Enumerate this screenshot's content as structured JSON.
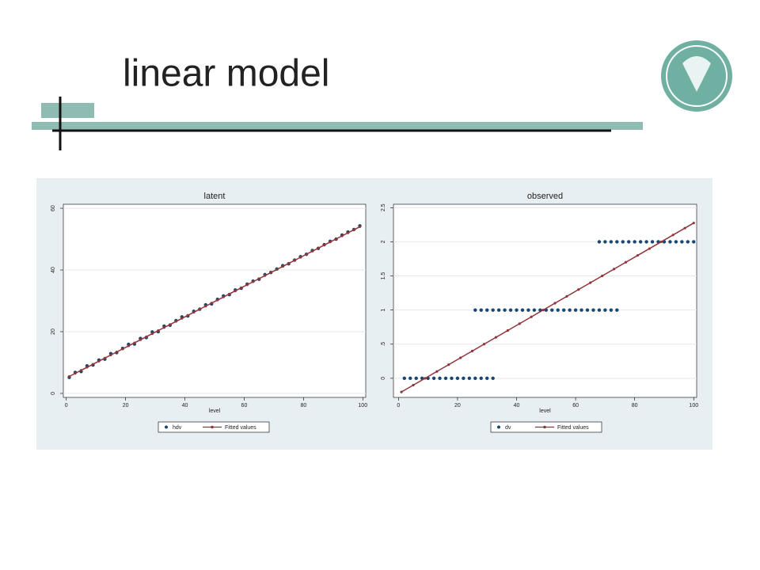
{
  "slide_title": "linear model",
  "chart_data": [
    {
      "type": "scatter",
      "title": "latent",
      "x_label": "level",
      "xlim": [
        -1,
        101
      ],
      "xticks": [
        0,
        20,
        40,
        60,
        80,
        100
      ],
      "ylim": [
        -1.3,
        61.3
      ],
      "yticks": [
        0,
        20,
        40,
        60
      ],
      "grid": true,
      "series": [
        {
          "name": "hdv",
          "color": "#1a476f",
          "kind": "scatter",
          "x": [
            1,
            3,
            5,
            7,
            9,
            11,
            13,
            15,
            17,
            19,
            21,
            23,
            25,
            27,
            29,
            31,
            33,
            35,
            37,
            39,
            41,
            43,
            45,
            47,
            49,
            51,
            53,
            55,
            57,
            59,
            61,
            63,
            65,
            67,
            69,
            71,
            73,
            75,
            77,
            79,
            81,
            83,
            85,
            87,
            89,
            91,
            93,
            95,
            97,
            99
          ],
          "values": [
            5.2,
            6.8,
            7.1,
            8.9,
            9.2,
            10.8,
            11.1,
            12.9,
            13.2,
            14.6,
            15.9,
            16.0,
            17.8,
            18.1,
            19.9,
            20.0,
            21.8,
            22.1,
            23.6,
            24.8,
            25.1,
            26.6,
            27.3,
            28.7,
            29.0,
            30.5,
            31.6,
            32.0,
            33.5,
            34.1,
            35.4,
            36.4,
            37.0,
            38.5,
            39.2,
            40.3,
            41.4,
            42.0,
            43.2,
            44.3,
            45.1,
            46.3,
            47.0,
            48.2,
            49.3,
            50.0,
            51.3,
            52.3,
            53.1,
            54.3
          ]
        },
        {
          "name": "Fitted values",
          "color": "#90353b",
          "kind": "line",
          "x": [
            1,
            3,
            5,
            7,
            9,
            11,
            13,
            15,
            17,
            19,
            21,
            23,
            25,
            27,
            29,
            31,
            33,
            35,
            37,
            39,
            41,
            43,
            45,
            47,
            49,
            51,
            53,
            55,
            57,
            59,
            61,
            63,
            65,
            67,
            69,
            71,
            73,
            75,
            77,
            79,
            81,
            83,
            85,
            87,
            89,
            91,
            93,
            95,
            97,
            99
          ],
          "values": [
            5.5,
            6.49,
            7.48,
            8.47,
            9.46,
            10.45,
            11.44,
            12.43,
            13.42,
            14.41,
            15.4,
            16.39,
            17.38,
            18.37,
            19.36,
            20.35,
            21.34,
            22.33,
            23.32,
            24.31,
            25.3,
            26.29,
            27.28,
            28.27,
            29.26,
            30.25,
            31.24,
            32.23,
            33.22,
            34.21,
            35.2,
            36.19,
            37.18,
            38.17,
            39.16,
            40.15,
            41.14,
            42.13,
            43.12,
            44.11,
            45.1,
            46.09,
            47.08,
            48.07,
            49.06,
            50.05,
            51.04,
            52.03,
            53.02,
            54.01
          ]
        }
      ]
    },
    {
      "type": "scatter",
      "title": "observed",
      "x_label": "level",
      "xlim": [
        -1.7,
        101
      ],
      "xticks": [
        0,
        20,
        40,
        60,
        80,
        100
      ],
      "ylim": [
        -0.28,
        2.55
      ],
      "yticks": [
        0,
        {
          "value": 0.5,
          "label": ".5"
        },
        1,
        1.5,
        2,
        2.5
      ],
      "grid": true,
      "series": [
        {
          "name": "dv",
          "color": "#1a476f",
          "kind": "scatter",
          "x": [
            2,
            4,
            6,
            8,
            10,
            12,
            14,
            16,
            18,
            20,
            22,
            24,
            26,
            28,
            30,
            32,
            26,
            28,
            30,
            32,
            34,
            36,
            38,
            40,
            42,
            44,
            46,
            48,
            50,
            52,
            54,
            56,
            58,
            60,
            62,
            64,
            66,
            68,
            70,
            72,
            74,
            68,
            70,
            72,
            74,
            76,
            78,
            80,
            82,
            84,
            86,
            88,
            90,
            92,
            94,
            96,
            98,
            100
          ],
          "values": [
            0,
            0,
            0,
            0,
            0,
            0,
            0,
            0,
            0,
            0,
            0,
            0,
            0,
            0,
            0,
            0,
            1,
            1,
            1,
            1,
            1,
            1,
            1,
            1,
            1,
            1,
            1,
            1,
            1,
            1,
            1,
            1,
            1,
            1,
            1,
            1,
            1,
            1,
            1,
            1,
            1,
            2,
            2,
            2,
            2,
            2,
            2,
            2,
            2,
            2,
            2,
            2,
            2,
            2,
            2,
            2,
            2,
            2
          ]
        },
        {
          "name": "Fitted values",
          "color": "#90353b",
          "kind": "line",
          "x": [
            1,
            5,
            9,
            13,
            17,
            21,
            25,
            29,
            33,
            37,
            41,
            45,
            49,
            53,
            57,
            61,
            65,
            69,
            73,
            77,
            81,
            85,
            89,
            93,
            97,
            100
          ],
          "values": [
            -0.2,
            -0.1,
            0,
            0.1,
            0.2,
            0.3,
            0.4,
            0.5,
            0.6,
            0.7,
            0.8,
            0.9,
            1.0,
            1.1,
            1.2,
            1.3,
            1.4,
            1.5,
            1.6,
            1.7,
            1.8,
            1.9,
            2.0,
            2.1,
            2.2,
            2.275
          ]
        }
      ]
    }
  ]
}
